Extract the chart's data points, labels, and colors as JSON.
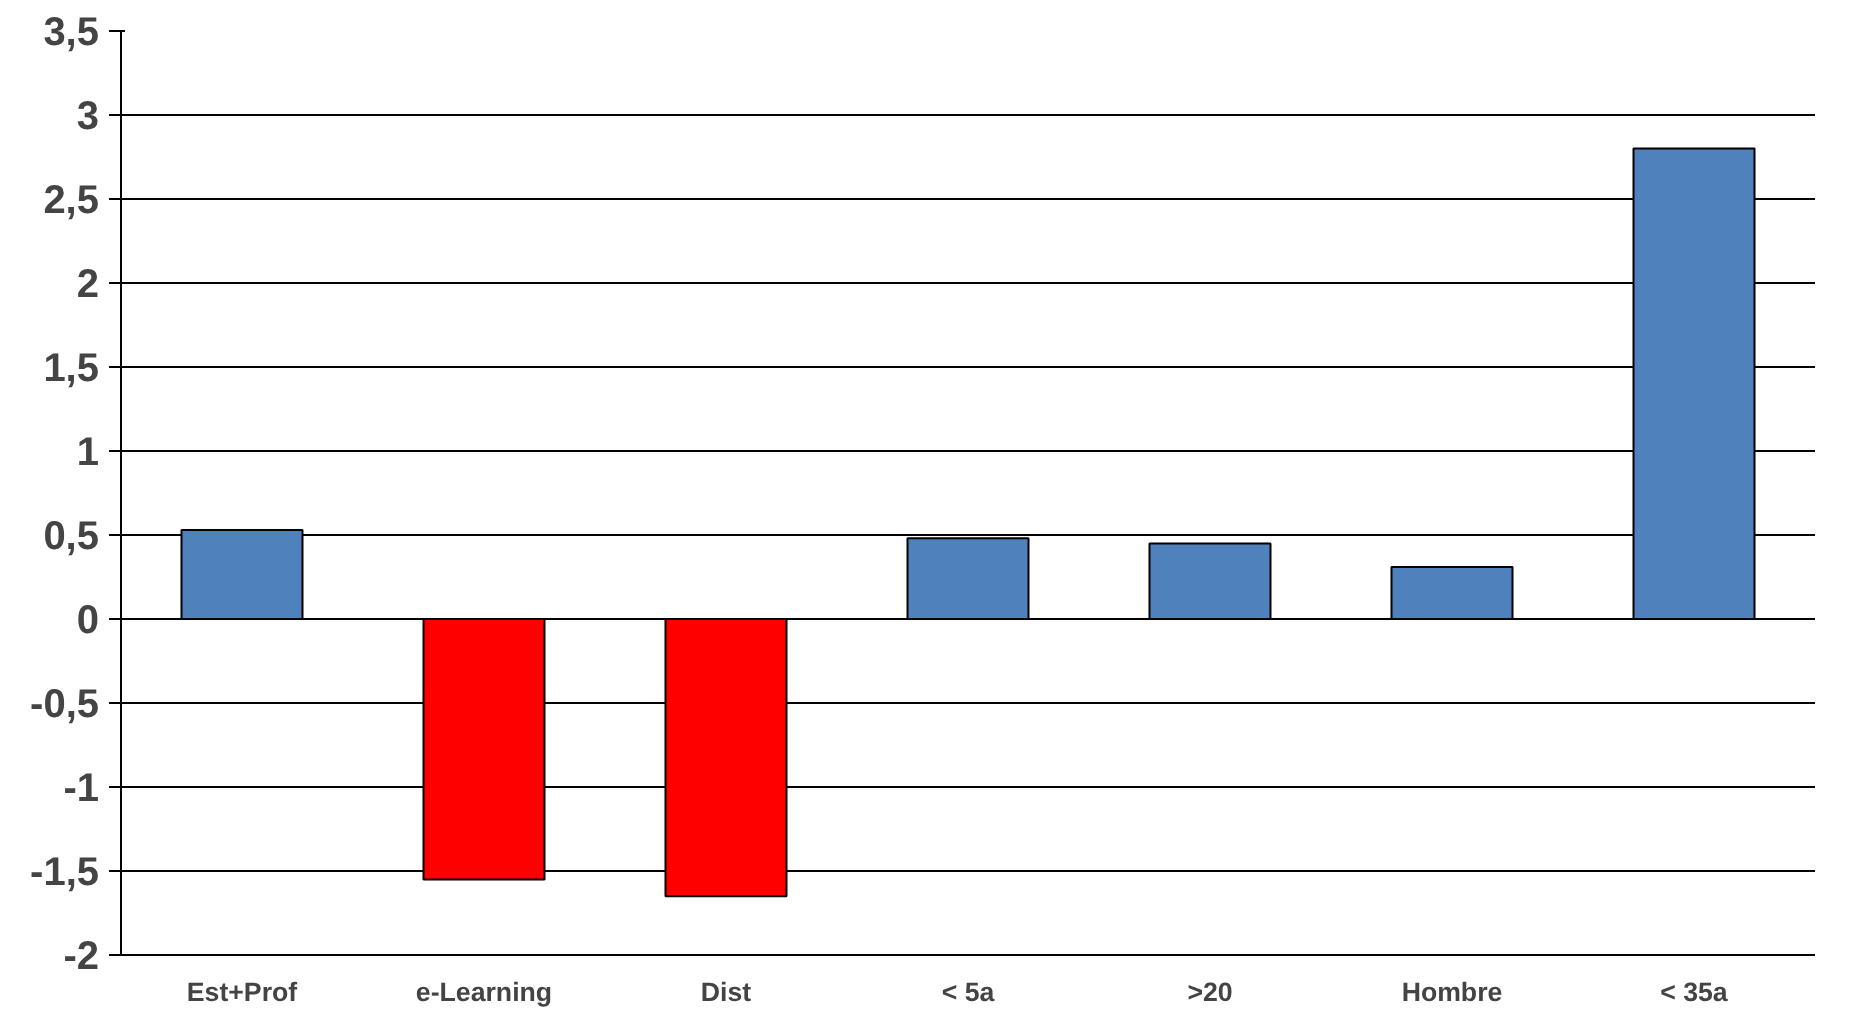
{
  "chart_data": {
    "type": "bar",
    "categories": [
      "Est+Prof",
      "e-Learning",
      "Dist",
      "< 5a",
      ">20",
      "Hombre",
      "< 35a"
    ],
    "values": [
      0.53,
      -1.55,
      -1.65,
      0.48,
      0.45,
      0.31,
      2.8
    ],
    "colors": [
      "#4f81bd",
      "#ff0000",
      "#ff0000",
      "#4f81bd",
      "#4f81bd",
      "#4f81bd",
      "#4f81bd"
    ],
    "ylim": [
      -2,
      3.5
    ],
    "yticks": [
      {
        "value": -2,
        "label": "-2"
      },
      {
        "value": -1.5,
        "label": "-1,5"
      },
      {
        "value": -1,
        "label": "-1"
      },
      {
        "value": -0.5,
        "label": "-0,5"
      },
      {
        "value": 0,
        "label": "0"
      },
      {
        "value": 0.5,
        "label": "0,5"
      },
      {
        "value": 1,
        "label": "1"
      },
      {
        "value": 1.5,
        "label": "1,5"
      },
      {
        "value": 2,
        "label": "2"
      },
      {
        "value": 2.5,
        "label": "2,5"
      },
      {
        "value": 3,
        "label": "3"
      },
      {
        "value": 3.5,
        "label": "3,5"
      }
    ],
    "grid": "y"
  }
}
